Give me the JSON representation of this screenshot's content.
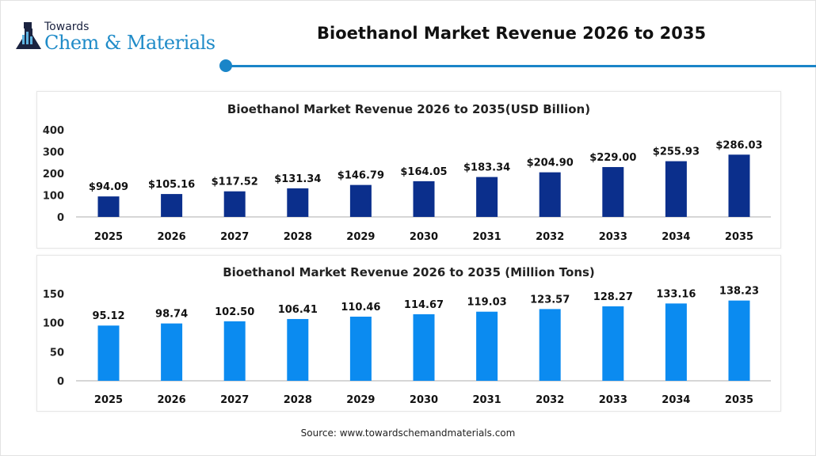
{
  "header": {
    "logo_top": "Towards",
    "logo_main": "Chem & Materials",
    "title": "Bioethanol Market Revenue 2026 to 2035"
  },
  "source": "Source: www.towardschemandmaterials.com",
  "colors": {
    "accent": "#1a85c8",
    "bar_revenue": "#0b2f8c",
    "bar_tons": "#0b8bf0"
  },
  "chart_data": [
    {
      "type": "bar",
      "title": "Bioethanol Market Revenue 2026 to 2035(USD Billion)",
      "categories": [
        "2025",
        "2026",
        "2027",
        "2028",
        "2029",
        "2030",
        "2031",
        "2032",
        "2033",
        "2034",
        "2035"
      ],
      "values": [
        94.09,
        105.16,
        117.52,
        131.34,
        146.79,
        164.05,
        183.34,
        204.9,
        229.0,
        255.93,
        286.03
      ],
      "data_labels": [
        "$94.09",
        "$105.16",
        "$117.52",
        "$131.34",
        "$146.79",
        "$164.05",
        "$183.34",
        "$204.90",
        "$229.00",
        "$255.93",
        "$286.03"
      ],
      "yticks": [
        "0",
        "100",
        "200",
        "300",
        "400"
      ],
      "ylim": [
        0,
        400
      ],
      "xlabel": "",
      "ylabel": "",
      "grid": false,
      "color": "#0b2f8c"
    },
    {
      "type": "bar",
      "title": "Bioethanol Market Revenue 2026 to 2035 (Million Tons)",
      "categories": [
        "2025",
        "2026",
        "2027",
        "2028",
        "2029",
        "2030",
        "2031",
        "2032",
        "2033",
        "2034",
        "2035"
      ],
      "values": [
        95.12,
        98.74,
        102.5,
        106.41,
        110.46,
        114.67,
        119.03,
        123.57,
        128.27,
        133.16,
        138.23
      ],
      "data_labels": [
        "95.12",
        "98.74",
        "102.50",
        "106.41",
        "110.46",
        "114.67",
        "119.03",
        "123.57",
        "128.27",
        "133.16",
        "138.23"
      ],
      "yticks": [
        "0",
        "50",
        "100",
        "150"
      ],
      "ylim": [
        0,
        150
      ],
      "xlabel": "",
      "ylabel": "",
      "grid": false,
      "color": "#0b8bf0"
    }
  ]
}
